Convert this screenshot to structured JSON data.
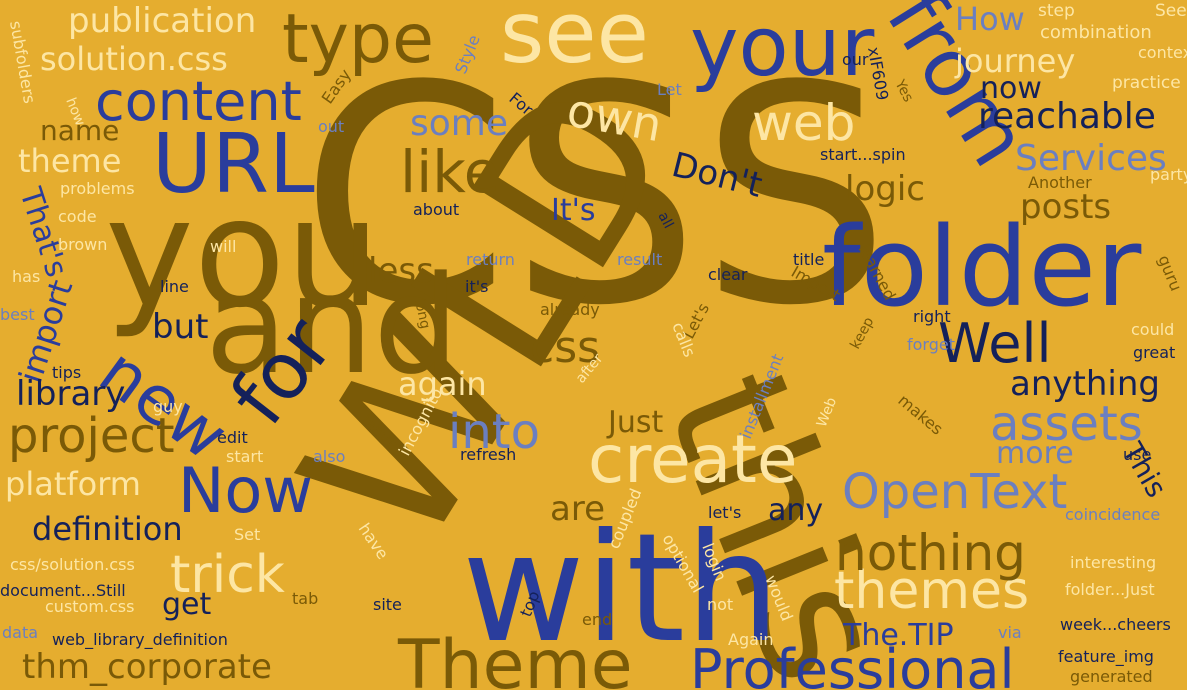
{
  "palette": {
    "background": "#e5ad2f",
    "olive": "#7a5a07",
    "blue": "#2a3d9c",
    "navy": "#14215a",
    "cream": "#fde6a4",
    "periwinkle": "#6b7fc0"
  },
  "words": [
    {
      "text": "CSS",
      "color": "olive"
    },
    {
      "text": "WLD",
      "color": "olive"
    },
    {
      "text": "this",
      "color": "olive"
    },
    {
      "text": "with",
      "color": "blue"
    },
    {
      "text": "you",
      "color": "olive"
    },
    {
      "text": "and",
      "color": "olive"
    },
    {
      "text": "folder",
      "color": "blue"
    },
    {
      "text": "see",
      "color": "cream"
    },
    {
      "text": "your",
      "color": "blue"
    },
    {
      "text": "from",
      "color": "blue"
    },
    {
      "text": "URL",
      "color": "blue"
    },
    {
      "text": "for",
      "color": "navy"
    },
    {
      "text": "new",
      "color": "blue"
    },
    {
      "text": "create",
      "color": "cream"
    },
    {
      "text": "Theme",
      "color": "olive"
    },
    {
      "text": "Professional",
      "color": "blue"
    },
    {
      "text": "type",
      "color": "olive"
    },
    {
      "text": "content",
      "color": "blue"
    },
    {
      "text": "Well",
      "color": "navy"
    },
    {
      "text": "Now",
      "color": "blue"
    },
    {
      "text": "OpenText",
      "color": "periwinkle"
    },
    {
      "text": "like",
      "color": "olive"
    },
    {
      "text": "web",
      "color": "cream"
    },
    {
      "text": "own",
      "color": "cream"
    },
    {
      "text": "project",
      "color": "olive"
    },
    {
      "text": "css",
      "color": "olive"
    },
    {
      "text": "trick",
      "color": "cream"
    },
    {
      "text": "themes",
      "color": "cream"
    },
    {
      "text": "nothing",
      "color": "olive"
    },
    {
      "text": "assets",
      "color": "periwinkle"
    },
    {
      "text": "into",
      "color": "periwinkle"
    },
    {
      "text": "publication",
      "color": "cream"
    },
    {
      "text": "solution.css",
      "color": "cream"
    },
    {
      "text": "journey",
      "color": "cream"
    },
    {
      "text": "How",
      "color": "periwinkle"
    },
    {
      "text": "now",
      "color": "navy"
    },
    {
      "text": "reachable",
      "color": "navy"
    },
    {
      "text": "some",
      "color": "periwinkle"
    },
    {
      "text": "Services",
      "color": "periwinkle"
    },
    {
      "text": "name",
      "color": "olive"
    },
    {
      "text": "theme",
      "color": "cream"
    },
    {
      "text": "Don't",
      "color": "navy"
    },
    {
      "text": "It's",
      "color": "blue"
    },
    {
      "text": "logic",
      "color": "olive"
    },
    {
      "text": "posts",
      "color": "olive"
    },
    {
      "text": "That's",
      "color": "blue"
    },
    {
      "text": "import",
      "color": "blue"
    },
    {
      "text": "less",
      "color": "olive"
    },
    {
      "text": "but",
      "color": "navy"
    },
    {
      "text": "library",
      "color": "navy"
    },
    {
      "text": "again",
      "color": "cream"
    },
    {
      "text": "anything",
      "color": "navy"
    },
    {
      "text": "Just",
      "color": "olive"
    },
    {
      "text": "more",
      "color": "periwinkle"
    },
    {
      "text": "This",
      "color": "navy"
    },
    {
      "text": "platform",
      "color": "cream"
    },
    {
      "text": "definition",
      "color": "navy"
    },
    {
      "text": "are",
      "color": "olive"
    },
    {
      "text": "any",
      "color": "navy"
    },
    {
      "text": "get",
      "color": "navy"
    },
    {
      "text": "thm_corporate",
      "color": "olive"
    },
    {
      "text": "The.TIP",
      "color": "blue"
    },
    {
      "text": "step",
      "color": "cream"
    },
    {
      "text": "See",
      "color": "cream"
    },
    {
      "text": "combination",
      "color": "cream"
    },
    {
      "text": "context",
      "color": "cream"
    },
    {
      "text": "our",
      "color": "navy"
    },
    {
      "text": "Style",
      "color": "periwinkle"
    },
    {
      "text": "subfolders",
      "color": "cream"
    },
    {
      "text": "Easy",
      "color": "olive"
    },
    {
      "text": "For",
      "color": "navy"
    },
    {
      "text": "xIF609",
      "color": "navy"
    },
    {
      "text": "Yes",
      "color": "olive"
    },
    {
      "text": "practice",
      "color": "cream"
    },
    {
      "text": "how",
      "color": "cream"
    },
    {
      "text": "out",
      "color": "periwinkle"
    },
    {
      "text": "Let",
      "color": "periwinkle"
    },
    {
      "text": "start...spin",
      "color": "navy"
    },
    {
      "text": "Another",
      "color": "olive"
    },
    {
      "text": "party",
      "color": "cream"
    },
    {
      "text": "problems",
      "color": "cream"
    },
    {
      "text": "code",
      "color": "cream"
    },
    {
      "text": "about",
      "color": "navy"
    },
    {
      "text": "all",
      "color": "navy"
    },
    {
      "text": "brown",
      "color": "cream"
    },
    {
      "text": "will",
      "color": "cream"
    },
    {
      "text": "return",
      "color": "periwinkle"
    },
    {
      "text": "result",
      "color": "periwinkle"
    },
    {
      "text": "title",
      "color": "navy"
    },
    {
      "text": "learned",
      "color": "olive"
    },
    {
      "text": "clear",
      "color": "navy"
    },
    {
      "text": "guru",
      "color": "olive"
    },
    {
      "text": "has",
      "color": "cream"
    },
    {
      "text": "line",
      "color": "navy"
    },
    {
      "text": "it's",
      "color": "navy"
    },
    {
      "text": "Import",
      "color": "olive"
    },
    {
      "text": "best",
      "color": "periwinkle"
    },
    {
      "text": "long",
      "color": "olive"
    },
    {
      "text": "already",
      "color": "olive"
    },
    {
      "text": "right",
      "color": "navy"
    },
    {
      "text": "could",
      "color": "cream"
    },
    {
      "text": "forget",
      "color": "periwinkle"
    },
    {
      "text": "great",
      "color": "navy"
    },
    {
      "text": "tips",
      "color": "navy"
    },
    {
      "text": "Let's",
      "color": "olive"
    },
    {
      "text": "calls",
      "color": "cream"
    },
    {
      "text": "keep",
      "color": "olive"
    },
    {
      "text": "after",
      "color": "cream"
    },
    {
      "text": "installment",
      "color": "periwinkle"
    },
    {
      "text": "guy",
      "color": "cream"
    },
    {
      "text": "makes",
      "color": "olive"
    },
    {
      "text": "Web",
      "color": "cream"
    },
    {
      "text": "edit",
      "color": "navy"
    },
    {
      "text": "leave",
      "color": "olive"
    },
    {
      "text": "incognito",
      "color": "cream"
    },
    {
      "text": "refresh",
      "color": "navy"
    },
    {
      "text": "use",
      "color": "navy"
    },
    {
      "text": "start",
      "color": "cream"
    },
    {
      "text": "also",
      "color": "periwinkle"
    },
    {
      "text": "Set",
      "color": "cream"
    },
    {
      "text": "have",
      "color": "cream"
    },
    {
      "text": "let's",
      "color": "navy"
    },
    {
      "text": "coincidence",
      "color": "periwinkle"
    },
    {
      "text": "interesting",
      "color": "cream"
    },
    {
      "text": "optional",
      "color": "cream"
    },
    {
      "text": "coupled",
      "color": "cream"
    },
    {
      "text": "login",
      "color": "cream"
    },
    {
      "text": "would",
      "color": "cream"
    },
    {
      "text": "css/solution.css",
      "color": "cream"
    },
    {
      "text": "document...Still",
      "color": "navy"
    },
    {
      "text": "custom.css",
      "color": "cream"
    },
    {
      "text": "tab",
      "color": "olive"
    },
    {
      "text": "site",
      "color": "navy"
    },
    {
      "text": "top",
      "color": "navy"
    },
    {
      "text": "end",
      "color": "olive"
    },
    {
      "text": "not",
      "color": "cream"
    },
    {
      "text": "folder...Just",
      "color": "cream"
    },
    {
      "text": "data",
      "color": "periwinkle"
    },
    {
      "text": "web_library_definition",
      "color": "navy"
    },
    {
      "text": "Again",
      "color": "cream"
    },
    {
      "text": "via",
      "color": "periwinkle"
    },
    {
      "text": "week...cheers",
      "color": "navy"
    },
    {
      "text": "feature_img",
      "color": "navy"
    },
    {
      "text": "generated",
      "color": "olive"
    }
  ]
}
